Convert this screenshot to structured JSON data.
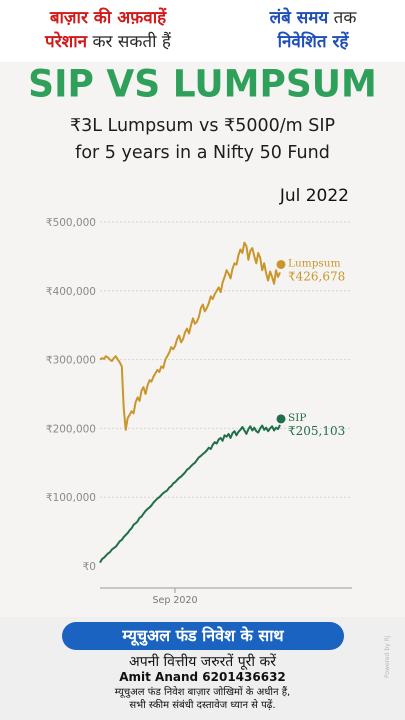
{
  "banner": {
    "left_line1": "बाज़ार की अफ़वाहें",
    "left_line2_bold": "परेशान",
    "left_line2_rest": " कर सकती हैं",
    "right_line1_bold": "लंबे समय",
    "right_line1_rest": " तक",
    "right_line2": "निवेशित रहें"
  },
  "header": {
    "title": "SIP VS LUMPSUM",
    "subtitle_line1": "₹3L Lumpsum vs ₹5000/m SIP",
    "subtitle_line2": "for 5 years in a Nifty 50 Fund",
    "date": "Jul 2022"
  },
  "chart_data": {
    "type": "line",
    "title": "SIP VS LUMPSUM",
    "x_tick_labels": [
      "Sep 2020"
    ],
    "y_tick_labels": [
      "₹0",
      "₹100,000",
      "₹200,000",
      "₹300,000",
      "₹400,000",
      "₹500,000"
    ],
    "ylim": [
      0,
      500000
    ],
    "grid": true,
    "colors": {
      "lumpsum": "#c9962c",
      "sip": "#1f6f4a",
      "axis": "#9a9a9a",
      "grid": "#d6d4d2"
    },
    "series": [
      {
        "name": "Lumpsum",
        "end_label": "₹426,678",
        "values": [
          300000,
          302000,
          301000,
          305000,
          303000,
          300000,
          298000,
          302000,
          305000,
          300000,
          296000,
          290000,
          230000,
          198000,
          215000,
          220000,
          225000,
          222000,
          238000,
          245000,
          240000,
          255000,
          260000,
          250000,
          262000,
          270000,
          268000,
          275000,
          280000,
          285000,
          282000,
          290000,
          288000,
          300000,
          305000,
          310000,
          318000,
          315000,
          320000,
          330000,
          335000,
          325000,
          330000,
          340000,
          345000,
          338000,
          350000,
          360000,
          352000,
          355000,
          362000,
          375000,
          380000,
          370000,
          375000,
          382000,
          392000,
          388000,
          395000,
          400000,
          405000,
          398000,
          412000,
          420000,
          430000,
          425000,
          418000,
          432000,
          440000,
          438000,
          452000,
          460000,
          455000,
          470000,
          465000,
          445000,
          458000,
          462000,
          450000,
          440000,
          455000,
          448000,
          430000,
          440000,
          425000,
          415000,
          428000,
          420000,
          410000,
          430000,
          420000,
          426678
        ]
      },
      {
        "name": "SIP",
        "end_label": "₹205,103",
        "values": [
          5000,
          10000,
          12000,
          15000,
          18000,
          20000,
          24000,
          26000,
          28000,
          32000,
          36000,
          38000,
          42000,
          45000,
          48000,
          52000,
          55000,
          60000,
          62000,
          65000,
          70000,
          72000,
          76000,
          80000,
          83000,
          85000,
          88000,
          92000,
          95000,
          98000,
          100000,
          103000,
          106000,
          108000,
          110000,
          114000,
          116000,
          120000,
          122000,
          125000,
          128000,
          130000,
          133000,
          136000,
          140000,
          142000,
          145000,
          148000,
          150000,
          154000,
          158000,
          160000,
          163000,
          165000,
          168000,
          172000,
          170000,
          176000,
          180000,
          178000,
          184000,
          186000,
          182000,
          190000,
          188000,
          192000,
          186000,
          193000,
          196000,
          190000,
          195000,
          198000,
          202000,
          197000,
          192000,
          199000,
          203000,
          197000,
          201000,
          196000,
          194000,
          200000,
          204000,
          198000,
          201000,
          196000,
          200000,
          203000,
          197000,
          201000,
          199000,
          205103
        ]
      }
    ]
  },
  "footer": {
    "pill": "म्यूचुअल फंड निवेश के साथ",
    "line1": "अपनी वित्तीय जरुरतें पूरी करें",
    "line2": "Amit Anand 6201436632",
    "line3a": "म्यूचुअल फंड निवेश बाज़ार जोखिमों के अधीन हैं,",
    "line3b": "सभी स्कीम संबंधी दस्तावेज ध्यान से पढ़ें.",
    "watermark": "Powered by RJ"
  }
}
